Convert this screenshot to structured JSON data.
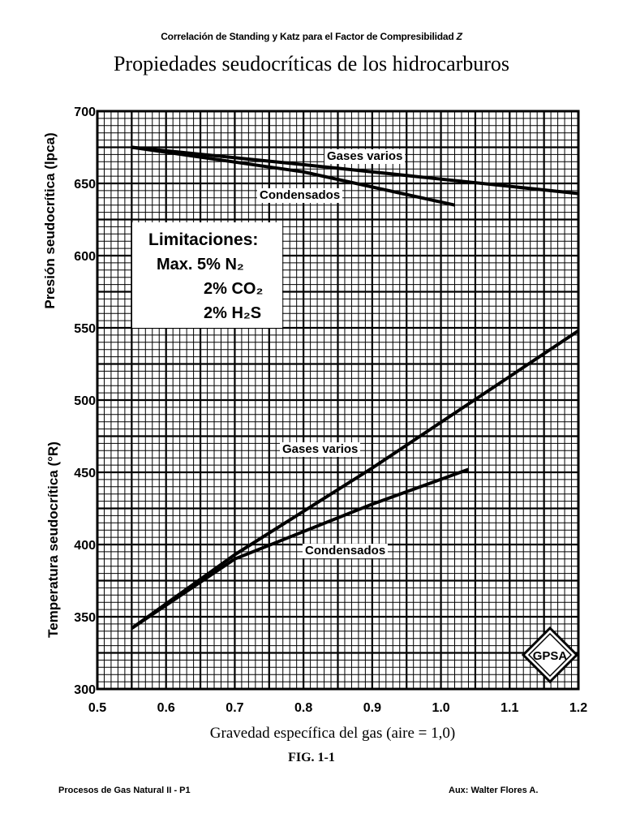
{
  "header": {
    "subtitle": "Correlación de Standing y Katz para el Factor de Compresibilidad",
    "subtitle_symbol": "Z",
    "title": "Propiedades seudocríticas de los hidrocarburos"
  },
  "footer": {
    "left": "Procesos de Gas Natural II - P1",
    "right": "Aux: Walter Flores A."
  },
  "figure_caption": "FIG. 1-1",
  "limitations": {
    "heading": "Limitaciones:",
    "line1": "Max. 5% N₂",
    "line2": "2% CO₂",
    "line3": "2% H₂S"
  },
  "curve_labels": {
    "pressure_gases": "Gases varios",
    "pressure_condensates": "Condensados",
    "temperature_gases": "Gases varios",
    "temperature_condensates": "Condensados"
  },
  "colors": {
    "ink": "#000000",
    "paper": "#ffffff"
  },
  "chart_data": {
    "type": "line",
    "title": "Propiedades seudocríticas de los hidrocarburos",
    "xlabel": "Gravedad específica del gas (aire = 1,0)",
    "ylabel_top": "Presión seudocrítica (lpca)",
    "ylabel_bottom": "Temperatura seudocrítica (°R)",
    "xlim": [
      0.5,
      1.2
    ],
    "ylim": [
      300,
      700
    ],
    "x_ticks": [
      "0.5",
      "0.6",
      "0.7",
      "0.8",
      "0.9",
      "1.0",
      "1.1",
      "1.2"
    ],
    "y_ticks": [
      "300",
      "350",
      "400",
      "450",
      "500",
      "550",
      "600",
      "650",
      "700"
    ],
    "grid": true,
    "series": [
      {
        "name": "Gases varios",
        "group": "pressure",
        "x": [
          0.55,
          0.8,
          1.2
        ],
        "y": [
          675,
          663,
          643
        ]
      },
      {
        "name": "Condensados",
        "group": "pressure",
        "x": [
          0.55,
          0.8,
          1.02
        ],
        "y": [
          675,
          658,
          635
        ]
      },
      {
        "name": "Gases varios",
        "group": "temperature",
        "x": [
          0.55,
          0.7,
          0.9,
          1.2
        ],
        "y": [
          342,
          393,
          453,
          548
        ]
      },
      {
        "name": "Condensados",
        "group": "temperature",
        "x": [
          0.55,
          0.7,
          0.9,
          1.04
        ],
        "y": [
          342,
          390,
          428,
          452
        ]
      }
    ]
  }
}
